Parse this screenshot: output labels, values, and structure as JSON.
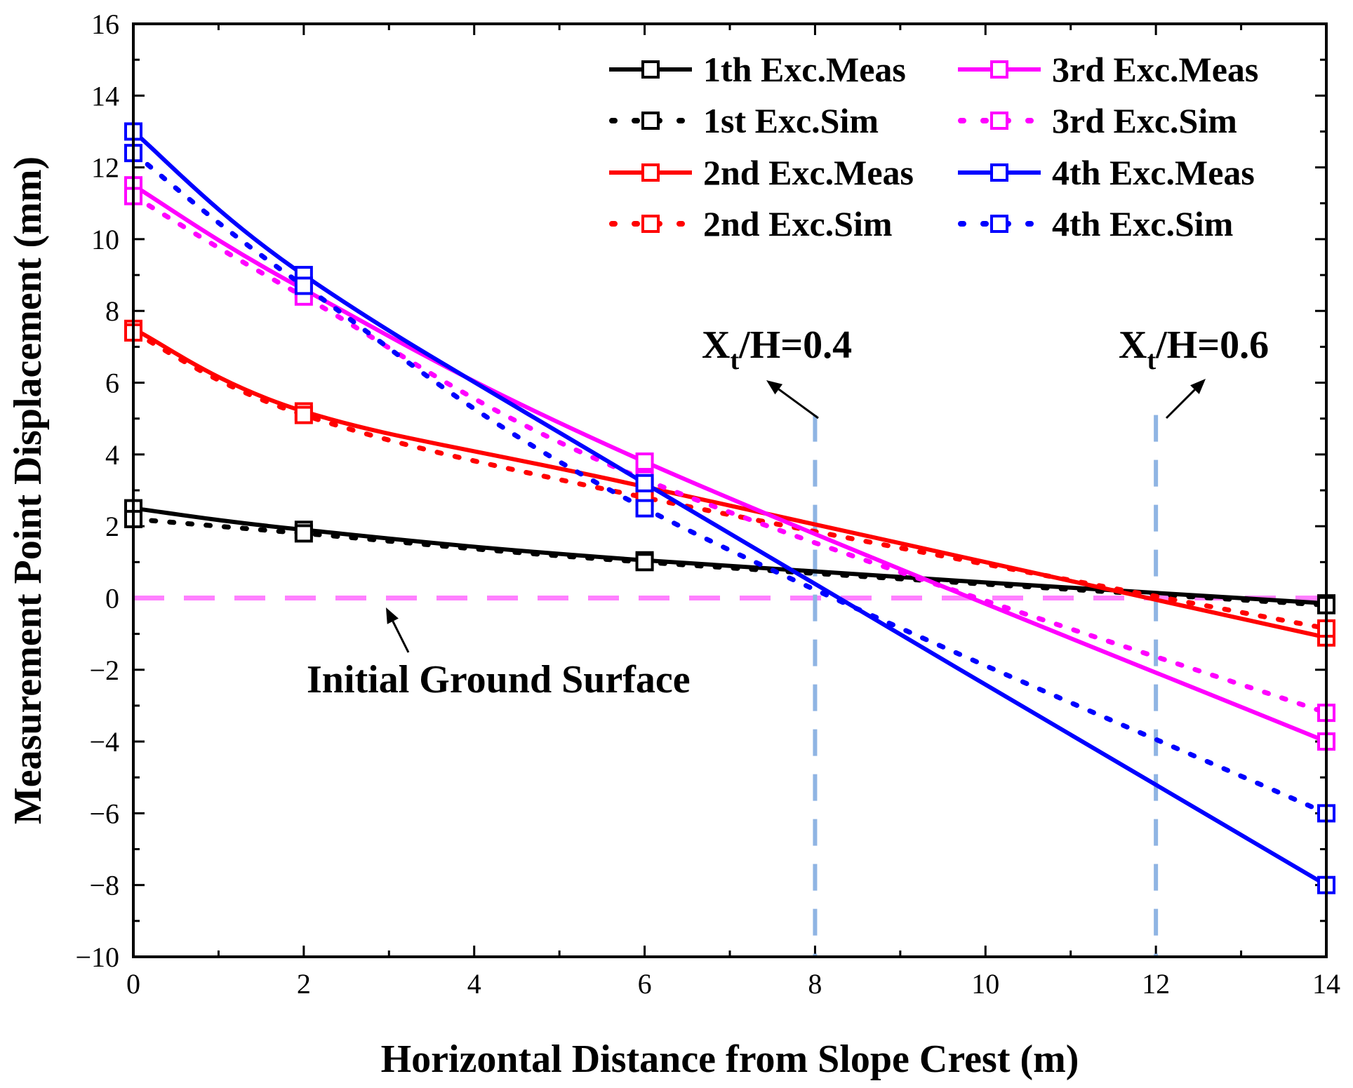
{
  "chart_data": {
    "type": "line",
    "xlabel": "Horizontal Distance from Slope Crest (m)",
    "ylabel": "Measurement Point Displacement (mm)",
    "xlim": [
      0,
      14
    ],
    "ylim": [
      -10,
      16
    ],
    "xticks": [
      0,
      2,
      4,
      6,
      8,
      10,
      12,
      14
    ],
    "yticks": [
      -10,
      -8,
      -6,
      -4,
      -2,
      0,
      2,
      4,
      6,
      8,
      10,
      12,
      14,
      16
    ],
    "x": [
      0,
      2,
      6,
      14
    ],
    "series": [
      {
        "name": "1th Exc.Meas",
        "color": "#000000",
        "style": "solid",
        "values": [
          2.5,
          1.9,
          1.05,
          -0.15
        ]
      },
      {
        "name": "1st Exc.Sim",
        "color": "#000000",
        "style": "dotted",
        "values": [
          2.2,
          1.8,
          1.0,
          -0.2
        ]
      },
      {
        "name": "2nd Exc.Meas",
        "color": "#ff0000",
        "style": "solid",
        "values": [
          7.5,
          5.2,
          3.1,
          -1.1
        ]
      },
      {
        "name": "2nd Exc.Sim",
        "color": "#ff0000",
        "style": "dotted",
        "values": [
          7.4,
          5.1,
          2.8,
          -0.85
        ]
      },
      {
        "name": "3rd Exc.Meas",
        "color": "#ff00ff",
        "style": "solid",
        "values": [
          11.5,
          8.6,
          3.8,
          -4.0
        ]
      },
      {
        "name": "3rd Exc.Sim",
        "color": "#ff00ff",
        "style": "dotted",
        "values": [
          11.2,
          8.4,
          3.3,
          -3.2
        ]
      },
      {
        "name": "4th Exc.Meas",
        "color": "#0000ff",
        "style": "solid",
        "values": [
          13.0,
          9.0,
          3.2,
          -8.0
        ]
      },
      {
        "name": "4th Exc.Sim",
        "color": "#0000ff",
        "style": "dotted",
        "values": [
          12.4,
          8.7,
          2.5,
          -6.0
        ]
      }
    ],
    "reference_lines": [
      {
        "orientation": "horizontal",
        "value": 0,
        "color": "#ff80ff",
        "label": "Initial Ground Surface"
      },
      {
        "orientation": "vertical",
        "value": 8,
        "color": "#8fb4e3",
        "label_main": "X",
        "label_sub": "t",
        "label_rest": "/H=0.4"
      },
      {
        "orientation": "vertical",
        "value": 12,
        "color": "#8fb4e3",
        "label_main": "X",
        "label_sub": "t",
        "label_rest": "/H=0.6"
      }
    ],
    "legend_position": "top-right"
  }
}
